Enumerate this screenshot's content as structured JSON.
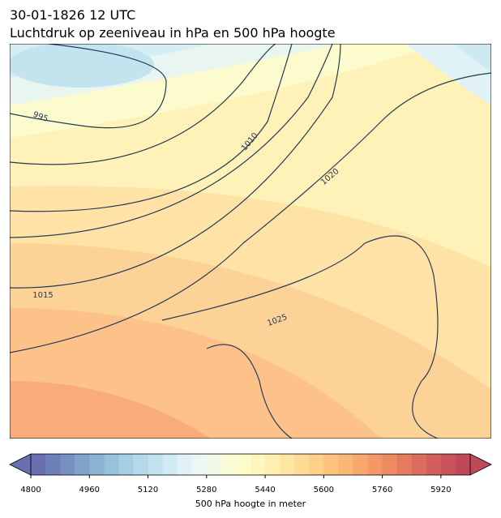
{
  "title": [
    "30-01-1826 12 UTC",
    "Luchtdruk op zeeniveau in hPa en 500 hPa hoogte"
  ],
  "contour_labels": [
    995,
    1010,
    1015,
    1020,
    1025
  ],
  "colorbar": {
    "label": "500 hPa hoogte in meter",
    "lim": [
      4800,
      6000
    ],
    "ticks": [
      4800,
      4960,
      5120,
      5280,
      5440,
      5600,
      5760,
      5920
    ],
    "colors": [
      "#6a6fb0",
      "#6f7fb8",
      "#7890c0",
      "#81a1ca",
      "#8bb2d3",
      "#97c1dc",
      "#a5cee4",
      "#b4d9ea",
      "#c3e2ef",
      "#d2eaf3",
      "#e1f2f6",
      "#ebf7f3",
      "#f2f9e6",
      "#f8fbd6",
      "#fdfccb",
      "#fef6bd",
      "#feeeaf",
      "#fee5a1",
      "#fedb94",
      "#fdcf89",
      "#fdc27e",
      "#fbb575",
      "#f8a76d",
      "#f39866",
      "#ec8a62",
      "#e47b5f",
      "#db6d5d",
      "#d25f5c",
      "#c8535b",
      "#bf4859"
    ]
  }
}
